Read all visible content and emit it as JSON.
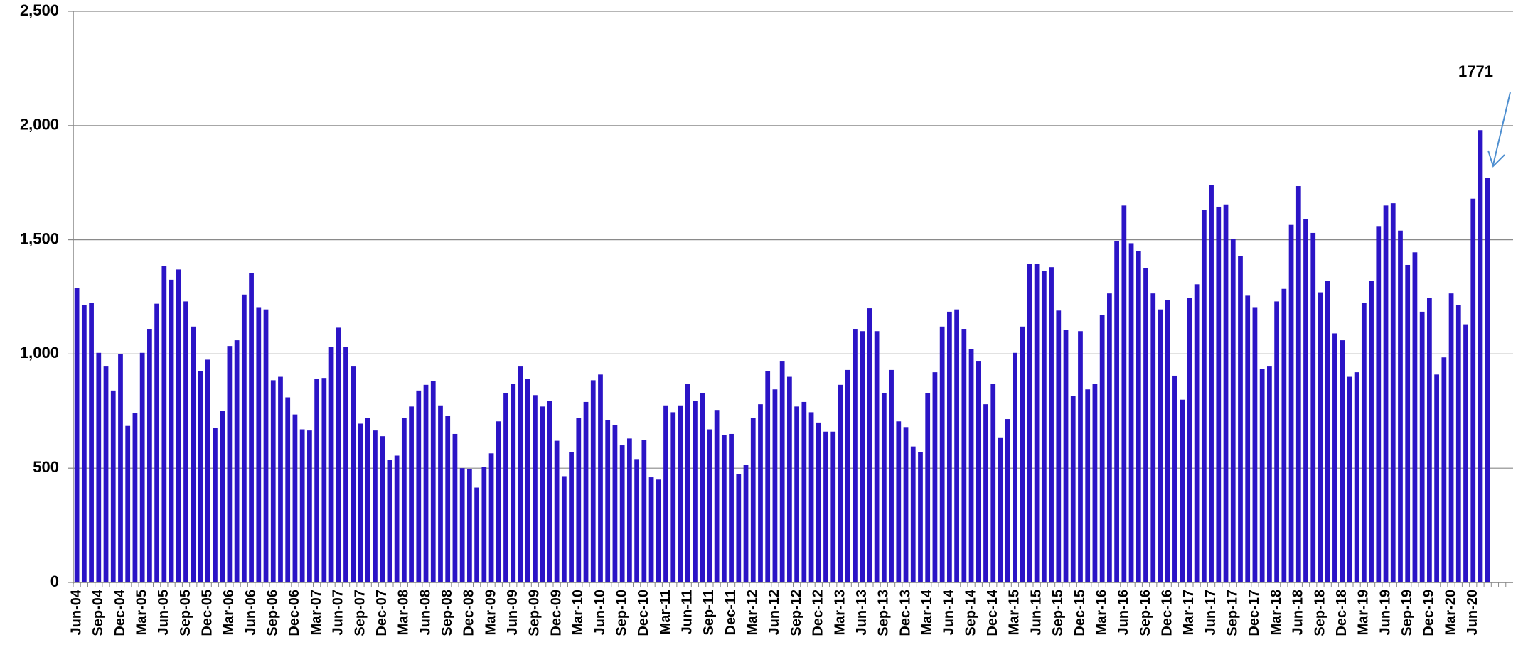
{
  "chart_data": {
    "type": "bar",
    "color": "#2b14c6",
    "grid": true,
    "ylim": [
      0,
      2500
    ],
    "yticks": [
      0,
      500,
      {
        "value": 1000,
        "label": "1,000"
      },
      {
        "value": 1500,
        "label": "1,500"
      },
      {
        "value": 2000,
        "label": "2,000"
      },
      {
        "value": 2500,
        "label": "2,500"
      }
    ],
    "categories": [
      "Jun-04",
      null,
      null,
      "Sep-04",
      null,
      null,
      "Dec-04",
      null,
      null,
      "Mar-05",
      null,
      null,
      "Jun-05",
      null,
      null,
      "Sep-05",
      null,
      null,
      "Dec-05",
      null,
      null,
      "Mar-06",
      null,
      null,
      "Jun-06",
      null,
      null,
      "Sep-06",
      null,
      null,
      "Dec-06",
      null,
      null,
      "Mar-07",
      null,
      null,
      "Jun-07",
      null,
      null,
      "Sep-07",
      null,
      null,
      "Dec-07",
      null,
      null,
      "Mar-08",
      null,
      null,
      "Jun-08",
      null,
      null,
      "Sep-08",
      null,
      null,
      "Dec-08",
      null,
      null,
      "Mar-09",
      null,
      null,
      "Jun-09",
      null,
      null,
      "Sep-09",
      null,
      null,
      "Dec-09",
      null,
      null,
      "Mar-10",
      null,
      null,
      "Jun-10",
      null,
      null,
      "Sep-10",
      null,
      null,
      "Dec-10",
      null,
      null,
      "Mar-11",
      null,
      null,
      "Jun-11",
      null,
      null,
      "Sep-11",
      null,
      null,
      "Dec-11",
      null,
      null,
      "Mar-12",
      null,
      null,
      "Jun-12",
      null,
      null,
      "Sep-12",
      null,
      null,
      "Dec-12",
      null,
      null,
      "Mar-13",
      null,
      null,
      "Jun-13",
      null,
      null,
      "Sep-13",
      null,
      null,
      "Dec-13",
      null,
      null,
      "Mar-14",
      null,
      null,
      "Jun-14",
      null,
      null,
      "Sep-14",
      null,
      null,
      "Dec-14",
      null,
      null,
      "Mar-15",
      null,
      null,
      "Jun-15",
      null,
      null,
      "Sep-15",
      null,
      null,
      "Dec-15",
      null,
      null,
      "Mar-16",
      null,
      null,
      "Jun-16",
      null,
      null,
      "Sep-16",
      null,
      null,
      "Dec-16",
      null,
      null,
      "Mar-17",
      null,
      null,
      "Jun-17",
      null,
      null,
      "Sep-17",
      null,
      null,
      "Dec-17",
      null,
      null,
      "Mar-18",
      null,
      null,
      "Jun-18",
      null,
      null,
      "Sep-18",
      null,
      null,
      "Dec-18",
      null,
      null,
      "Mar-19",
      null,
      null,
      "Jun-19",
      null,
      null,
      "Sep-19",
      null,
      null,
      "Dec-19",
      null,
      null,
      "Mar-20",
      null,
      null,
      "Jun-20",
      null,
      null,
      null,
      null,
      null
    ],
    "values": [
      1290,
      1215,
      1225,
      1005,
      945,
      840,
      1000,
      685,
      740,
      1005,
      1110,
      1220,
      1385,
      1325,
      1370,
      1230,
      1120,
      925,
      975,
      675,
      750,
      1035,
      1060,
      1260,
      1355,
      1205,
      1195,
      885,
      900,
      810,
      735,
      670,
      665,
      890,
      895,
      1030,
      1115,
      1030,
      945,
      695,
      720,
      665,
      640,
      535,
      555,
      720,
      770,
      840,
      865,
      880,
      775,
      730,
      650,
      500,
      495,
      415,
      505,
      565,
      705,
      830,
      870,
      945,
      890,
      820,
      770,
      795,
      620,
      465,
      570,
      720,
      790,
      885,
      910,
      710,
      690,
      600,
      630,
      540,
      625,
      460,
      450,
      775,
      745,
      775,
      870,
      795,
      830,
      670,
      755,
      645,
      650,
      475,
      515,
      720,
      780,
      925,
      845,
      970,
      900,
      770,
      790,
      745,
      700,
      660,
      660,
      865,
      930,
      1110,
      1100,
      1200,
      1100,
      830,
      930,
      705,
      680,
      595,
      570,
      830,
      920,
      1120,
      1185,
      1195,
      1110,
      1020,
      970,
      780,
      870,
      635,
      715,
      1005,
      1120,
      1395,
      1395,
      1365,
      1380,
      1190,
      1105,
      815,
      1100,
      845,
      870,
      1170,
      1265,
      1495,
      1650,
      1485,
      1450,
      1375,
      1265,
      1195,
      1235,
      905,
      800,
      1245,
      1305,
      1630,
      1740,
      1645,
      1655,
      1505,
      1430,
      1255,
      1205,
      935,
      945,
      1230,
      1285,
      1565,
      1735,
      1590,
      1530,
      1270,
      1320,
      1090,
      1060,
      900,
      920,
      1225,
      1320,
      1560,
      1650,
      1660,
      1540,
      1390,
      1445,
      1185,
      1245,
      910,
      985,
      1265,
      1215,
      1130,
      1680,
      1980,
      1771,
      null,
      null,
      null
    ]
  }
}
